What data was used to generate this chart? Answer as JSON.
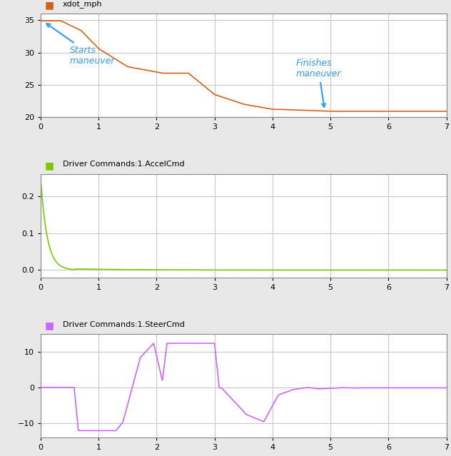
{
  "fig_width": 6.32,
  "fig_height": 6.39,
  "dpi": 100,
  "bg_color": "#e8e8e8",
  "plot_bg_color": "#ffffff",
  "grid_color": "#c8c8c8",
  "plot1": {
    "label": "xdot_mph",
    "legend_color": "#d4611a",
    "line_color": "#d4611a",
    "line_width": 1.2,
    "ylim": [
      20,
      36
    ],
    "xlim": [
      0,
      7
    ],
    "yticks": [
      20,
      25,
      30,
      35
    ]
  },
  "plot2": {
    "label": "Driver Commands:1.AccelCmd",
    "legend_color": "#7ec800",
    "line_color": "#7ec800",
    "line_width": 1.2,
    "ylim": [
      -0.02,
      0.26
    ],
    "xlim": [
      0,
      7
    ],
    "yticks": [
      0.0,
      0.1,
      0.2
    ]
  },
  "plot3": {
    "label": "Driver Commands:1.SteerCmd",
    "legend_color": "#cc66ff",
    "line_color": "#cc66ff",
    "line_width": 1.2,
    "ylim": [
      -14,
      15
    ],
    "xlim": [
      0,
      7
    ],
    "yticks": [
      -10,
      0,
      10
    ]
  },
  "annotation_color": "#3399ff",
  "annotation_fontsize": 9,
  "tick_fontsize": 8,
  "label_fontsize": 8
}
